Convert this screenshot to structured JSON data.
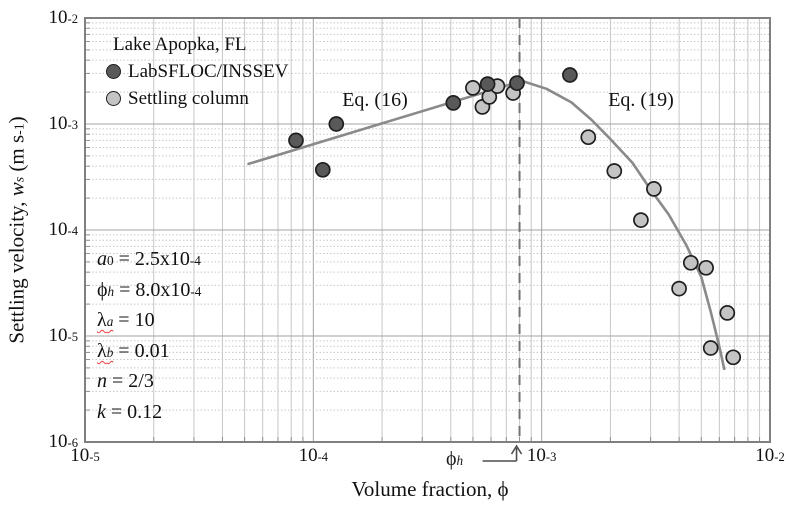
{
  "chart_data": {
    "type": "scatter",
    "title": "Lake Apopka, FL",
    "x_axis": {
      "label_segments": [
        {
          "t": "Volume fraction, "
        },
        {
          "t": "ϕ"
        }
      ],
      "scale": "log",
      "min": 1e-05,
      "max": 0.01,
      "tick_exponents": [
        -5,
        -4,
        -3,
        -2
      ]
    },
    "y_axis": {
      "label_segments": [
        {
          "t": "Settling velocity, "
        },
        {
          "t": "w",
          "i": true
        },
        {
          "t": "s",
          "sub": true,
          "i": true
        },
        {
          "t": " (m s"
        },
        {
          "t": "-1",
          "sup": true
        },
        {
          "t": ")"
        }
      ],
      "scale": "log",
      "min": 1e-06,
      "max": 0.01,
      "tick_exponents": [
        -2,
        -3,
        -4,
        -5,
        -6
      ]
    },
    "grid": {
      "minor": true,
      "major": true,
      "minor_color": "#c7c7c7",
      "major_color": "#a3a3a3"
    },
    "series": [
      {
        "name": "LabSFLOC/INSSEV",
        "marker": "circle",
        "color": "#595959",
        "edge_color": "#1f1f1f",
        "points": [
          [
            8.4e-05,
            0.0007
          ],
          [
            0.00011,
            0.00037
          ],
          [
            0.000126,
            0.001
          ],
          [
            0.00041,
            0.00158
          ],
          [
            0.00058,
            0.00238
          ],
          [
            0.00078,
            0.00243
          ],
          [
            0.00133,
            0.0029
          ]
        ]
      },
      {
        "name": "Settling column",
        "marker": "circle",
        "color": "#c4c4c4",
        "edge_color": "#1f1f1f",
        "points": [
          [
            0.0005,
            0.00219
          ],
          [
            0.00055,
            0.00145
          ],
          [
            0.00059,
            0.0018
          ],
          [
            0.00064,
            0.00228
          ],
          [
            0.00075,
            0.00196
          ],
          [
            0.0016,
            0.00075
          ],
          [
            0.00208,
            0.00036
          ],
          [
            0.0031,
            0.000244
          ],
          [
            0.00272,
            0.000124
          ],
          [
            0.0045,
            4.9e-05
          ],
          [
            0.00525,
            4.4e-05
          ],
          [
            0.004,
            2.8e-05
          ],
          [
            0.0065,
            1.65e-05
          ],
          [
            0.0055,
            7.7e-06
          ],
          [
            0.0069,
            6.3e-06
          ]
        ]
      }
    ],
    "fit_curves": [
      {
        "name": "Eq. (16)",
        "color": "#8a8a8a",
        "points": [
          [
            5.2e-05,
            0.00042
          ],
          [
            0.00082,
            0.00255
          ]
        ]
      },
      {
        "name": "Eq. (19)",
        "color": "#8a8a8a",
        "points": [
          [
            0.00082,
            0.00255
          ],
          [
            0.00105,
            0.00215
          ],
          [
            0.00135,
            0.0016
          ],
          [
            0.00165,
            0.0011
          ],
          [
            0.002,
            0.00072
          ],
          [
            0.0025,
            0.00043
          ],
          [
            0.003,
            0.00024
          ],
          [
            0.0036,
            0.00014
          ],
          [
            0.0043,
            7.2e-05
          ],
          [
            0.005,
            3.6e-05
          ],
          [
            0.0055,
            1.7e-05
          ],
          [
            0.006,
            8e-06
          ],
          [
            0.0063,
            4.9e-06
          ]
        ]
      }
    ],
    "reference_line": {
      "type": "vertical-dashed",
      "x": 0.0008,
      "color": "#737373",
      "label_segments": [
        {
          "t": "ϕ"
        },
        {
          "t": "h",
          "sub": true,
          "i": true
        }
      ]
    },
    "annotations": {
      "parameters": [
        {
          "segments": [
            {
              "t": "a",
              "i": true
            },
            {
              "t": "0",
              "sub": true
            },
            {
              "t": " = 2.5x10"
            },
            {
              "t": "-4",
              "sup": true
            }
          ]
        },
        {
          "segments": [
            {
              "t": "ϕ"
            },
            {
              "t": "h",
              "sub": true,
              "i": true
            },
            {
              "t": " = 8.0x10"
            },
            {
              "t": "-4",
              "sup": true
            }
          ]
        },
        {
          "segments": [
            {
              "t": "λ",
              "wavy": true
            },
            {
              "t": "a",
              "sub": true,
              "i": true,
              "wavy": true
            },
            {
              "t": " = 10"
            }
          ]
        },
        {
          "segments": [
            {
              "t": "λ",
              "wavy": true
            },
            {
              "t": "b",
              "sub": true,
              "i": true,
              "wavy": true
            },
            {
              "t": " = 0.01"
            }
          ]
        },
        {
          "segments": [
            {
              "t": "n",
              "i": true
            },
            {
              "t": " = 2/3"
            }
          ]
        },
        {
          "segments": [
            {
              "t": "k",
              "i": true
            },
            {
              "t": " = 0.12"
            }
          ]
        }
      ]
    }
  }
}
